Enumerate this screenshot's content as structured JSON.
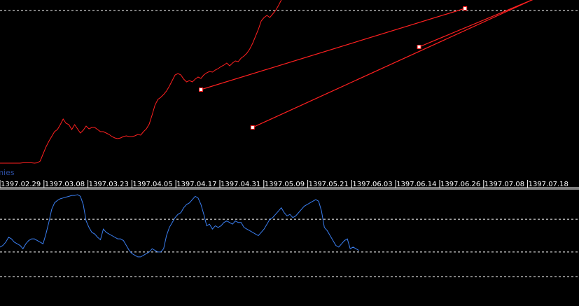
{
  "chart_data": [
    {
      "type": "line",
      "panel": "price",
      "grid": "horizontal dashed",
      "x_ticks": [
        "1397.02.29",
        "1397.03.08",
        "1397.03.23",
        "1397.04.05",
        "1397.04.17",
        "1397.04.31",
        "1397.05.09",
        "1397.05.21",
        "1397.06.03",
        "1397.06.14",
        "1397.06.26",
        "1397.07.08",
        "1397.07.18"
      ],
      "series": [
        {
          "color": "#ff2020",
          "values": [
            7,
            7,
            7,
            7,
            7,
            7,
            7,
            7,
            7.5,
            7.5,
            7.5,
            7.5,
            7,
            7.5,
            10,
            20,
            30,
            38,
            45,
            52,
            55,
            62,
            70,
            64,
            62,
            55,
            62,
            56,
            50,
            54,
            60,
            56,
            58,
            58,
            55,
            52,
            52,
            50,
            48,
            45,
            43,
            42,
            43,
            45,
            46,
            45,
            45,
            46,
            48,
            47,
            52,
            56,
            63,
            76,
            90,
            98,
            101,
            105,
            110,
            117,
            125,
            133,
            135,
            133,
            127,
            123,
            125,
            123,
            127,
            130,
            128,
            133,
            136,
            138,
            137,
            140,
            142,
            145,
            147,
            150,
            146,
            150,
            153,
            152,
            157,
            160,
            164,
            170,
            178,
            188,
            198,
            210,
            215,
            218,
            215,
            220,
            225,
            232,
            240,
            250,
            263,
            278,
            290,
            300,
            315,
            325,
            330,
            333,
            328,
            325,
            325,
            330,
            325
          ]
        }
      ],
      "trendlines": [
        {
          "color": "#ff2020",
          "from": {
            "i": 70,
            "v": 112
          },
          "to": {
            "i": 162,
            "v": 228
          }
        },
        {
          "color": "#ff2020",
          "from": {
            "i": 88,
            "v": 58
          },
          "to": {
            "i": 204,
            "v": 275
          }
        },
        {
          "color": "#ff2020",
          "from": {
            "i": 146,
            "v": 173
          },
          "to": {
            "i": 204,
            "v": 272
          }
        }
      ],
      "levels": [
        225
      ]
    },
    {
      "type": "line",
      "panel": "indicator",
      "name": "rmies",
      "ylim": [
        0,
        100
      ],
      "levels": [
        70,
        30,
        0
      ],
      "series": [
        {
          "color": "#3a7ef0",
          "values": [
            36,
            38,
            42,
            48,
            46,
            42,
            40,
            38,
            34,
            40,
            44,
            46,
            46,
            44,
            42,
            40,
            52,
            66,
            82,
            90,
            93,
            95,
            96,
            97,
            98,
            99,
            99,
            100,
            98,
            88,
            68,
            60,
            54,
            52,
            48,
            45,
            58,
            54,
            52,
            50,
            48,
            46,
            46,
            44,
            38,
            32,
            28,
            26,
            24,
            24,
            26,
            28,
            30,
            34,
            32,
            30,
            30,
            34,
            50,
            60,
            66,
            72,
            76,
            78,
            84,
            88,
            90,
            94,
            98,
            96,
            88,
            76,
            62,
            64,
            58,
            62,
            60,
            62,
            66,
            68,
            66,
            64,
            68,
            66,
            66,
            60,
            58,
            56,
            54,
            52,
            50,
            54,
            58,
            64,
            70,
            72,
            76,
            80,
            84,
            78,
            74,
            76,
            72,
            74,
            78,
            82,
            86,
            88,
            90,
            92,
            94,
            92,
            80,
            60,
            56,
            50,
            44,
            38,
            36,
            40,
            44,
            46,
            34,
            36,
            34,
            32
          ]
        }
      ]
    }
  ]
}
